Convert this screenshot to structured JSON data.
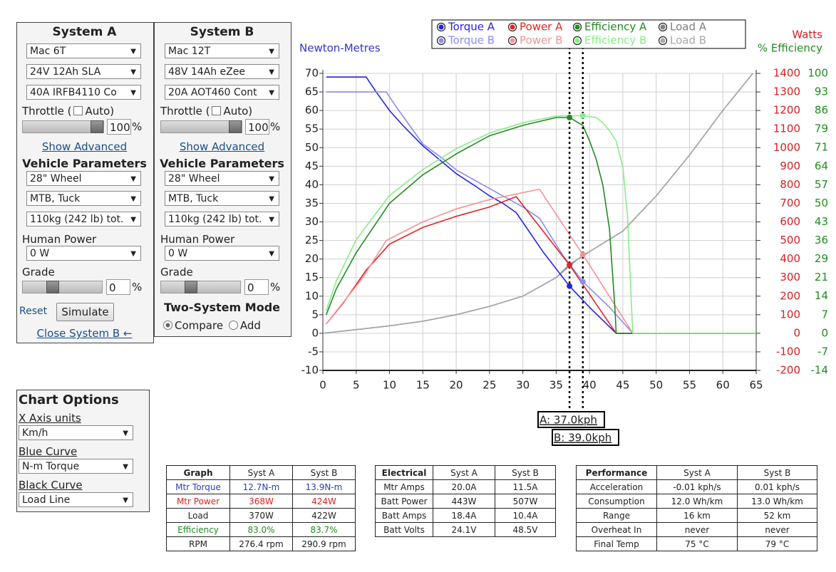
{
  "system_a": {
    "title": "System A",
    "motor": "Mac 6T",
    "battery": "24V 12Ah SLA",
    "controller": "40A IRFB4110 Co",
    "throttle_label": "Throttle (",
    "auto_label": "Auto)",
    "throttle_value": "100",
    "percent": "%",
    "show_advanced": "Show Advanced",
    "vehicle_parameters": "Vehicle Parameters",
    "wheel": "28\"  Wheel",
    "position": "MTB, Tuck",
    "weight": "110kg (242 lb) tot.",
    "human_power_label": "Human Power",
    "human_power": "0 W",
    "grade_label": "Grade",
    "grade_value": "0",
    "grade_percent": "%",
    "reset": "Reset",
    "simulate": "Simulate",
    "close": "Close System B ←"
  },
  "system_b": {
    "title": "System B",
    "motor": "Mac 12T",
    "battery": "48V 14Ah eZee",
    "controller": "20A AOT460 Cont",
    "throttle_label": "Throttle (",
    "auto_label": "Auto)",
    "throttle_value": "100",
    "percent": "%",
    "show_advanced": "Show Advanced",
    "vehicle_parameters": "Vehicle Parameters",
    "wheel": "28\"  Wheel",
    "position": "MTB, Tuck",
    "weight": "110kg (242 lb) tot.",
    "human_power_label": "Human Power",
    "human_power": "0 W",
    "grade_label": "Grade",
    "grade_value": "0",
    "grade_percent": "%",
    "two_system_mode": "Two-System Mode",
    "compare": "Compare",
    "add": "Add"
  },
  "chart_options": {
    "title": "Chart Options",
    "x_axis_units_label": "X Axis units",
    "x_axis_units": "Km/h",
    "blue_curve_label": "Blue Curve",
    "blue_curve": "N-m Torque",
    "black_curve_label": "Black Curve",
    "black_curve": "Load Line"
  },
  "chart_data": {
    "type": "line",
    "y_label": "Newton-Metres",
    "y2_label": "Watts",
    "y3_label": "% Efficiency",
    "xlim": [
      0,
      65
    ],
    "xticks": [
      0,
      5,
      10,
      15,
      20,
      25,
      30,
      35,
      40,
      45,
      50,
      55,
      60,
      65
    ],
    "ylim": [
      -10,
      70
    ],
    "yticks": [
      -10,
      -5,
      0,
      5,
      10,
      15,
      20,
      25,
      30,
      35,
      40,
      45,
      50,
      55,
      60,
      65,
      70
    ],
    "y2lim": [
      -200,
      1400
    ],
    "y2ticks": [
      -200,
      -100,
      0,
      100,
      200,
      300,
      400,
      500,
      600,
      700,
      800,
      900,
      1000,
      1100,
      1200,
      1300,
      1400
    ],
    "y3lim": [
      -14.29,
      100
    ],
    "y3ticks": [
      {
        "value": -14.29,
        "label": "-14"
      },
      {
        "value": -7.14,
        "label": "-7"
      },
      0,
      {
        "value": 7.14,
        "label": "7"
      },
      {
        "value": 14.29,
        "label": "14"
      },
      {
        "value": 21.43,
        "label": "21"
      },
      {
        "value": 28.57,
        "label": "29"
      },
      {
        "value": 35.71,
        "label": "36"
      },
      {
        "value": 42.86,
        "label": "43"
      },
      50,
      {
        "value": 57.14,
        "label": "57"
      },
      {
        "value": 64.29,
        "label": "64"
      },
      {
        "value": 71.43,
        "label": "71"
      },
      {
        "value": 78.57,
        "label": "79"
      },
      {
        "value": 85.71,
        "label": "86"
      },
      {
        "value": 92.86,
        "label": "93"
      },
      100
    ],
    "grid": true,
    "cursors": [
      {
        "x": 37,
        "label": "A: 37.0kph"
      },
      {
        "x": 39,
        "label": "B: 39.0kph"
      }
    ],
    "series": [
      {
        "name": "Torque A",
        "color": "#2424e0",
        "x": [
          0.5,
          6.5,
          8,
          10,
          12,
          15,
          18,
          20,
          23,
          25,
          27,
          29,
          33,
          37,
          40,
          44,
          65
        ],
        "values": [
          69,
          69,
          65,
          60,
          56,
          50.5,
          46,
          43,
          39.5,
          37,
          35,
          32.5,
          22,
          12.7,
          7,
          0,
          0
        ],
        "marker_x": 37,
        "marker_value": 12.7
      },
      {
        "name": "Torque B",
        "color": "#8c8cec",
        "x": [
          0.5,
          9.5,
          11,
          13,
          15,
          18,
          20,
          23,
          25,
          28,
          30,
          32.5,
          36,
          39,
          43,
          46.5,
          65
        ],
        "values": [
          65,
          65,
          61,
          56,
          51,
          47,
          44,
          41,
          39,
          36,
          34,
          31,
          21,
          13.9,
          7,
          0,
          0
        ],
        "marker_x": 39,
        "marker_value": 13.9
      },
      {
        "name": "Power A",
        "color": "#e42424",
        "axis": "y2",
        "x": [
          0.5,
          3,
          6.5,
          10,
          15,
          20,
          25,
          29,
          37,
          44,
          65
        ],
        "values": [
          50,
          160,
          340,
          480,
          570,
          630,
          680,
          736,
          368,
          0,
          0
        ],
        "marker_x": 37,
        "marker_value": 368
      },
      {
        "name": "Power B",
        "color": "#f29494",
        "axis": "y2",
        "x": [
          0.5,
          6,
          9.5,
          15,
          20,
          25,
          32.5,
          39,
          46.5,
          65
        ],
        "values": [
          50,
          300,
          500,
          600,
          670,
          720,
          776,
          424,
          0,
          0
        ],
        "marker_x": 39,
        "marker_value": 424
      },
      {
        "name": "Efficiency A",
        "color": "#228a22",
        "axis": "y3",
        "x": [
          0.5,
          2,
          5,
          10,
          15,
          20,
          25,
          30,
          35,
          37,
          39,
          40,
          41,
          42,
          43,
          43.8,
          44,
          65
        ],
        "values": [
          7.1,
          17,
          31,
          50,
          61,
          69,
          76,
          80,
          83,
          83,
          80,
          74,
          67,
          57,
          40,
          10,
          0,
          0
        ],
        "marker_x": 37,
        "marker_value": 83
      },
      {
        "name": "Efficiency B",
        "color": "#88ec88",
        "axis": "y3",
        "x": [
          0.5,
          2,
          5,
          10,
          15,
          20,
          25,
          30,
          35,
          39,
          41,
          42,
          43,
          44,
          45,
          45.7,
          46.3,
          46.5,
          65
        ],
        "values": [
          8.6,
          20,
          36,
          53,
          63,
          71,
          77,
          81,
          83.6,
          83.7,
          83,
          81,
          78,
          74,
          64,
          45,
          10,
          0,
          0
        ],
        "marker_x": 39,
        "marker_value": 83.7
      },
      {
        "name": "Load A",
        "color": "#808080",
        "axis": "y2",
        "x": [
          0,
          5,
          10,
          15,
          20,
          25,
          30,
          35,
          37,
          40,
          45,
          50,
          55,
          60,
          64.5
        ],
        "values": [
          0,
          20,
          40,
          65,
          100,
          145,
          200,
          300,
          370,
          440,
          550,
          740,
          960,
          1200,
          1400
        ]
      },
      {
        "name": "Load B",
        "color": "#a8a8a8",
        "axis": "y2",
        "x": [
          0,
          5,
          10,
          15,
          20,
          25,
          30,
          35,
          39,
          40,
          45,
          50,
          55,
          60,
          64.5
        ],
        "values": [
          0,
          20,
          40,
          65,
          100,
          145,
          200,
          300,
          422,
          440,
          550,
          740,
          960,
          1200,
          1400
        ]
      }
    ]
  },
  "tables": [
    {
      "header": [
        "Graph",
        "Syst A",
        "Syst B"
      ],
      "rows": [
        [
          "Mtr Torque",
          "12.7N-m",
          "13.9N-m"
        ],
        [
          "Mtr Power",
          "368W",
          "424W"
        ],
        [
          "Load",
          "370W",
          "422W"
        ],
        [
          "Efficiency",
          "83.0%",
          "83.7%"
        ],
        [
          "RPM",
          "276.4 rpm",
          "290.9 rpm"
        ]
      ]
    },
    {
      "header": [
        "Electrical",
        "Syst A",
        "Syst B"
      ],
      "rows": [
        [
          "Mtr Amps",
          "20.0A",
          "11.5A"
        ],
        [
          "Batt Power",
          "443W",
          "507W"
        ],
        [
          "Batt Amps",
          "18.4A",
          "10.4A"
        ],
        [
          "Batt Volts",
          "24.1V",
          "48.5V"
        ]
      ]
    },
    {
      "header": [
        "Performance",
        "Syst A",
        "Syst B"
      ],
      "rows": [
        [
          "Acceleration",
          "-0.01 kph/s",
          "0.01 kph/s"
        ],
        [
          "Consumption",
          "12.0 Wh/km",
          "13.0 Wh/km"
        ],
        [
          "Range",
          "16 km",
          "52 km"
        ],
        [
          "Overheat In",
          "never",
          "never"
        ],
        [
          "Final Temp",
          "75 °C",
          "79 °C"
        ]
      ]
    }
  ]
}
